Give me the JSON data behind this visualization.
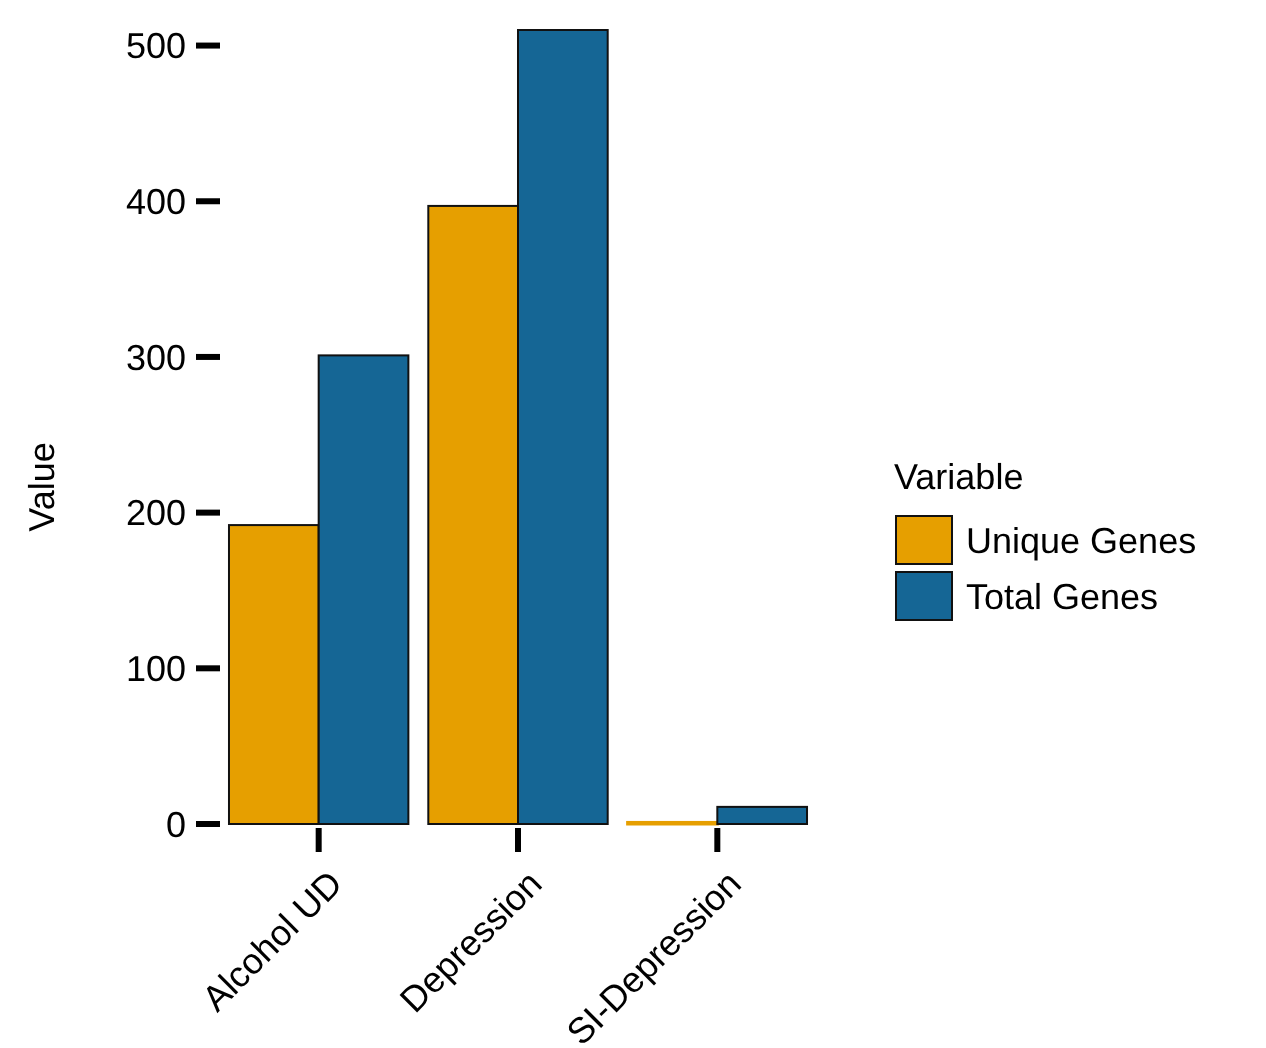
{
  "chart_data": {
    "type": "bar",
    "ylabel": "Value",
    "legend_title": "Variable",
    "categories": [
      "Alcohol UD",
      "Depression",
      "SI-Depression"
    ],
    "series": [
      {
        "name": "Unique Genes",
        "color": "#e69f00",
        "values": [
          192,
          397,
          1
        ]
      },
      {
        "name": "Total Genes",
        "color": "#156695",
        "values": [
          301,
          510,
          11
        ]
      }
    ],
    "ylim": [
      0,
      510
    ],
    "yticks": [
      0,
      100,
      200,
      300,
      400,
      500
    ],
    "grid": false,
    "legend": "right"
  }
}
